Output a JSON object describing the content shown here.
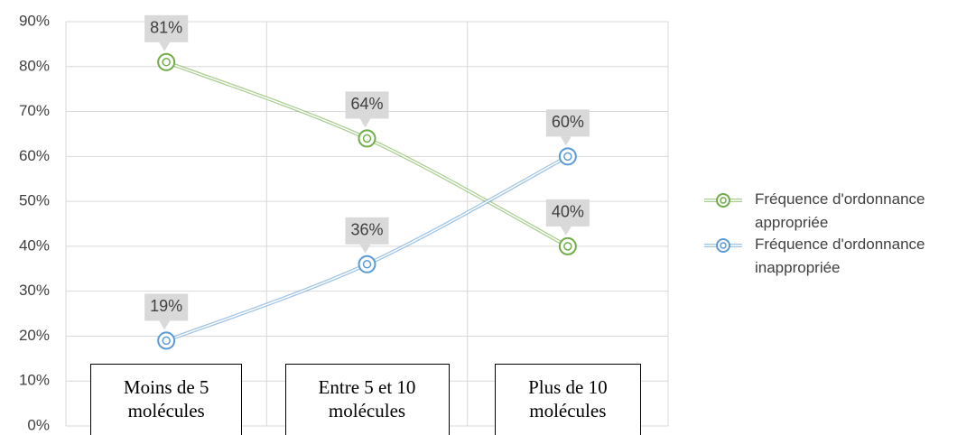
{
  "chart_data": {
    "type": "line",
    "categories": [
      "Moins de 5 molécules",
      "Entre 5 et 10 molécules",
      "Plus de 10 molécules"
    ],
    "series": [
      {
        "name": "Fréquence d'ordonnance appropriée",
        "color": "#70ad47",
        "values": [
          81,
          64,
          40
        ],
        "value_labels": [
          "81%",
          "64%",
          "40%"
        ]
      },
      {
        "name": "Fréquence d'ordonnance inappropriée",
        "color": "#5b9bd5",
        "values": [
          19,
          36,
          60
        ],
        "value_labels": [
          "19%",
          "36%",
          "60%"
        ]
      }
    ],
    "ylim": [
      0,
      90
    ],
    "yticks": [
      {
        "value": 0,
        "label": "0%"
      },
      {
        "value": 10,
        "label": "10%"
      },
      {
        "value": 20,
        "label": "20%"
      },
      {
        "value": 30,
        "label": "30%"
      },
      {
        "value": 40,
        "label": "40%"
      },
      {
        "value": 50,
        "label": "50%"
      },
      {
        "value": 60,
        "label": "60%"
      },
      {
        "value": 70,
        "label": "70%"
      },
      {
        "value": 80,
        "label": "80%"
      },
      {
        "value": 90,
        "label": "90%"
      }
    ],
    "grid": true,
    "legend": "right"
  }
}
